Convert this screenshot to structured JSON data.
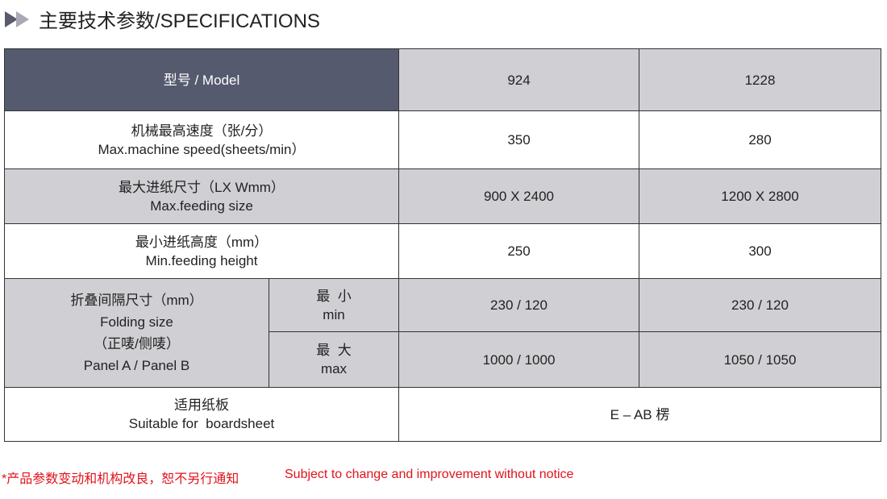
{
  "title": "主要技术参数/SPECIFICATIONS",
  "header": {
    "label": "型号  / Model",
    "models": [
      "924",
      "1228"
    ]
  },
  "rows": [
    {
      "zh": "机械最高速度（张/分）",
      "en": "Max.machine speed(sheets/min）",
      "values": [
        "350",
        "280"
      ]
    },
    {
      "zh": "最大进纸尺寸（LX Wmm）",
      "en": "Max.feeding size",
      "values": [
        "900 X 2400",
        "1200 X 2800"
      ]
    },
    {
      "zh": "最小进纸高度（mm）",
      "en": "Min.feeding height",
      "values": [
        "250",
        "300"
      ]
    }
  ],
  "folding": {
    "zh": "折叠间隔尺寸（mm）",
    "en": "Folding size",
    "zh2": "（正唛/侧唛）",
    "en2": "Panel A / Panel B",
    "min": {
      "zh": "最  小",
      "en": "min",
      "values": [
        "230 / 120",
        "230 / 120"
      ]
    },
    "max": {
      "zh": "最  大",
      "en": "max",
      "values": [
        "1000 / 1000",
        "1050 / 1050"
      ]
    }
  },
  "board": {
    "zh": "适用纸板",
    "en": "Suitable for  boardsheet",
    "value": "E – AB 楞"
  },
  "notes": {
    "zh": "*产品参数变动和机构改良，恕不另行通知",
    "en": "Subject to change and improvement without notice"
  },
  "colors": {
    "header": "#565a6e",
    "shade": "#d0d0d4",
    "note": "#e0131c"
  }
}
